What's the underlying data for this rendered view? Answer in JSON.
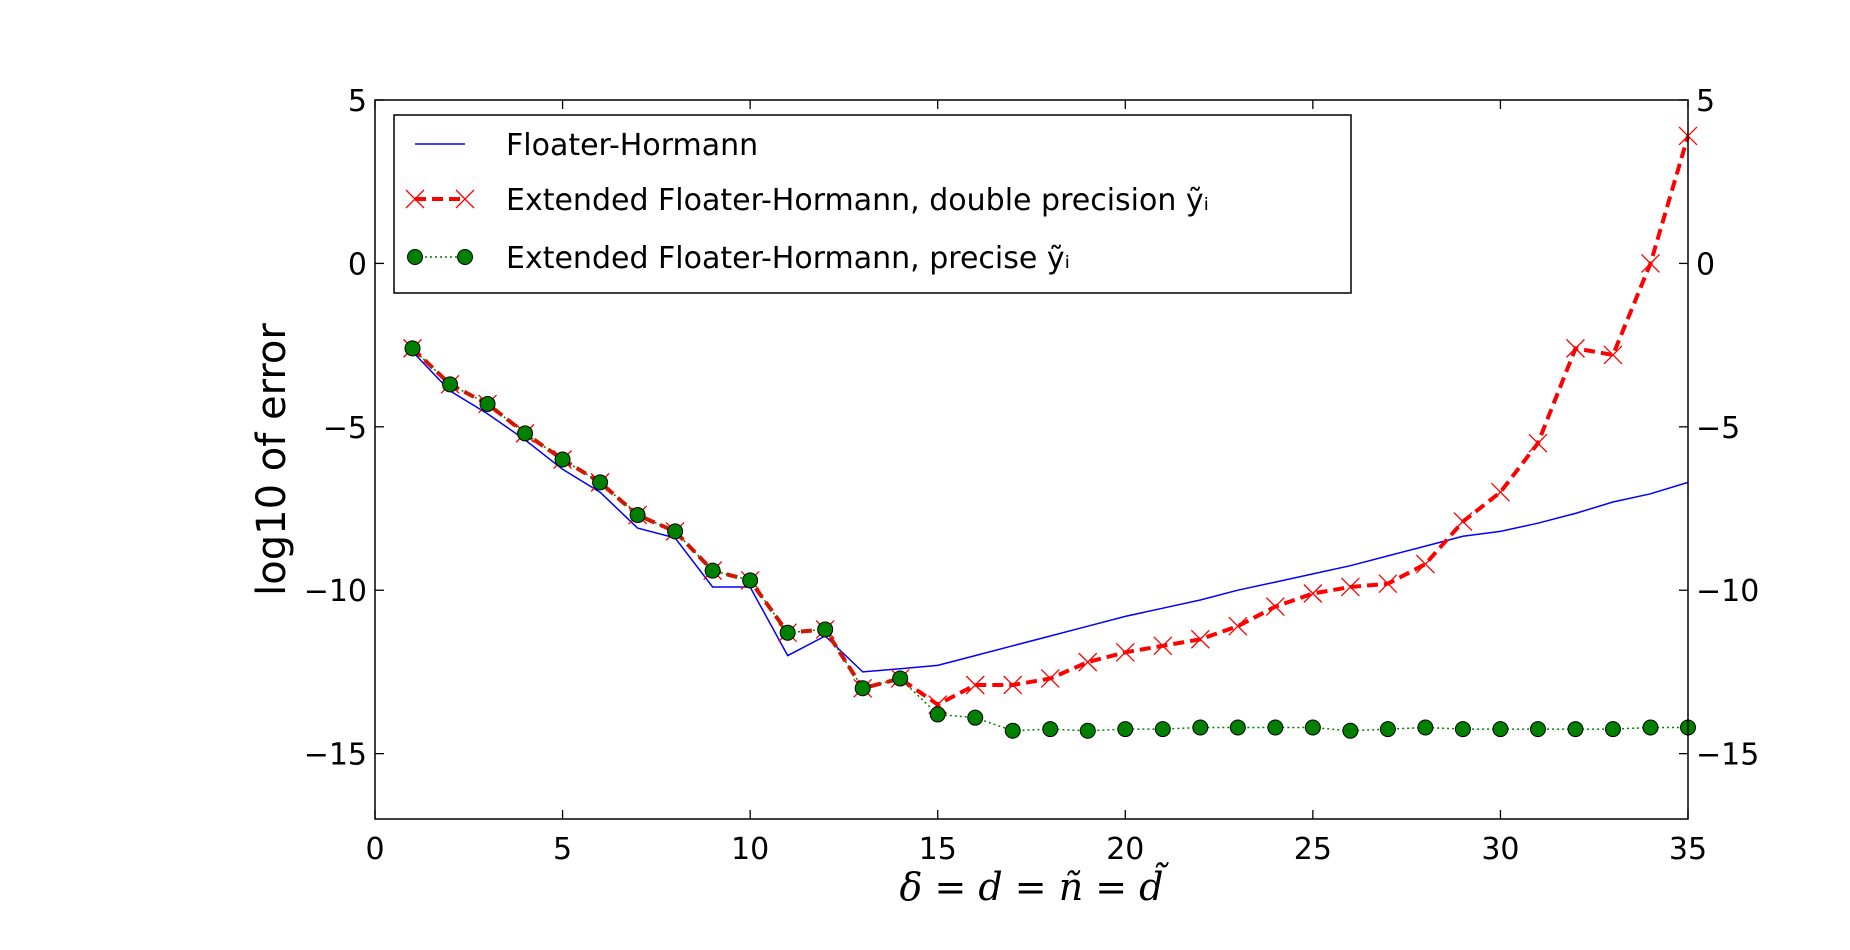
{
  "chart_data": {
    "type": "line",
    "xlabel": "δ = d = ñ = d̃",
    "ylabel": "log10 of error",
    "xlim": [
      0,
      35
    ],
    "ylim": [
      -17,
      5
    ],
    "x_ticks": [
      0,
      5,
      10,
      15,
      20,
      25,
      30,
      35
    ],
    "y_ticks": [
      5,
      0,
      -5,
      -10,
      -15
    ],
    "y_tick_labels": [
      "5",
      "0",
      "−5",
      "−10",
      "−15"
    ],
    "secondary_y_axis": true,
    "grid": false,
    "legend_position": "upper-left",
    "legend": [
      "Floater-Hormann",
      "Extended Floater-Hormann, double precision ỹᵢ",
      "Extended Floater-Hormann, precise ỹᵢ"
    ],
    "series": [
      {
        "name": "Floater-Hormann",
        "color": "#0000ff",
        "style": "solid",
        "marker": "none",
        "x": [
          1,
          2,
          3,
          4,
          5,
          6,
          7,
          8,
          9,
          10,
          11,
          12,
          13,
          14,
          15,
          16,
          17,
          18,
          19,
          20,
          21,
          22,
          23,
          24,
          25,
          26,
          27,
          28,
          29,
          30,
          31,
          32,
          33,
          34,
          35
        ],
        "y": [
          -2.7,
          -3.9,
          -4.6,
          -5.4,
          -6.3,
          -7.0,
          -8.1,
          -8.4,
          -9.9,
          -9.9,
          -12.0,
          -11.4,
          -12.5,
          -12.4,
          -12.3,
          -12.0,
          -11.7,
          -11.4,
          -11.1,
          -10.8,
          -10.55,
          -10.3,
          -10.0,
          -9.75,
          -9.5,
          -9.25,
          -8.95,
          -8.65,
          -8.35,
          -8.2,
          -7.95,
          -7.65,
          -7.3,
          -7.05,
          -6.7
        ]
      },
      {
        "name": "Extended Floater-Hormann, double precision ỹᵢ",
        "color": "#ff0000",
        "style": "dashed",
        "marker": "x",
        "x": [
          1,
          2,
          3,
          4,
          5,
          6,
          7,
          8,
          9,
          10,
          11,
          12,
          13,
          14,
          15,
          16,
          17,
          18,
          19,
          20,
          21,
          22,
          23,
          24,
          25,
          26,
          27,
          28,
          29,
          30,
          31,
          32,
          33,
          34,
          35
        ],
        "y": [
          -2.6,
          -3.7,
          -4.3,
          -5.2,
          -6.0,
          -6.7,
          -7.7,
          -8.2,
          -9.4,
          -9.7,
          -11.3,
          -11.2,
          -13.0,
          -12.7,
          -13.5,
          -12.9,
          -12.9,
          -12.7,
          -12.2,
          -11.9,
          -11.7,
          -11.5,
          -11.1,
          -10.5,
          -10.1,
          -9.9,
          -9.8,
          -9.2,
          -7.9,
          -7.0,
          -5.5,
          -2.6,
          -2.8,
          0.0,
          3.9
        ]
      },
      {
        "name": "Extended Floater-Hormann, precise ỹᵢ",
        "color": "#008000",
        "style": "dotted",
        "marker": "o",
        "x": [
          1,
          2,
          3,
          4,
          5,
          6,
          7,
          8,
          9,
          10,
          11,
          12,
          13,
          14,
          15,
          16,
          17,
          18,
          19,
          20,
          21,
          22,
          23,
          24,
          25,
          26,
          27,
          28,
          29,
          30,
          31,
          32,
          33,
          34,
          35
        ],
        "y": [
          -2.6,
          -3.7,
          -4.3,
          -5.2,
          -6.0,
          -6.7,
          -7.7,
          -8.2,
          -9.4,
          -9.7,
          -11.3,
          -11.2,
          -13.0,
          -12.7,
          -13.8,
          -13.9,
          -14.3,
          -14.25,
          -14.3,
          -14.25,
          -14.25,
          -14.2,
          -14.2,
          -14.2,
          -14.2,
          -14.3,
          -14.25,
          -14.2,
          -14.25,
          -14.25,
          -14.25,
          -14.25,
          -14.25,
          -14.2,
          -14.2
        ]
      }
    ]
  }
}
